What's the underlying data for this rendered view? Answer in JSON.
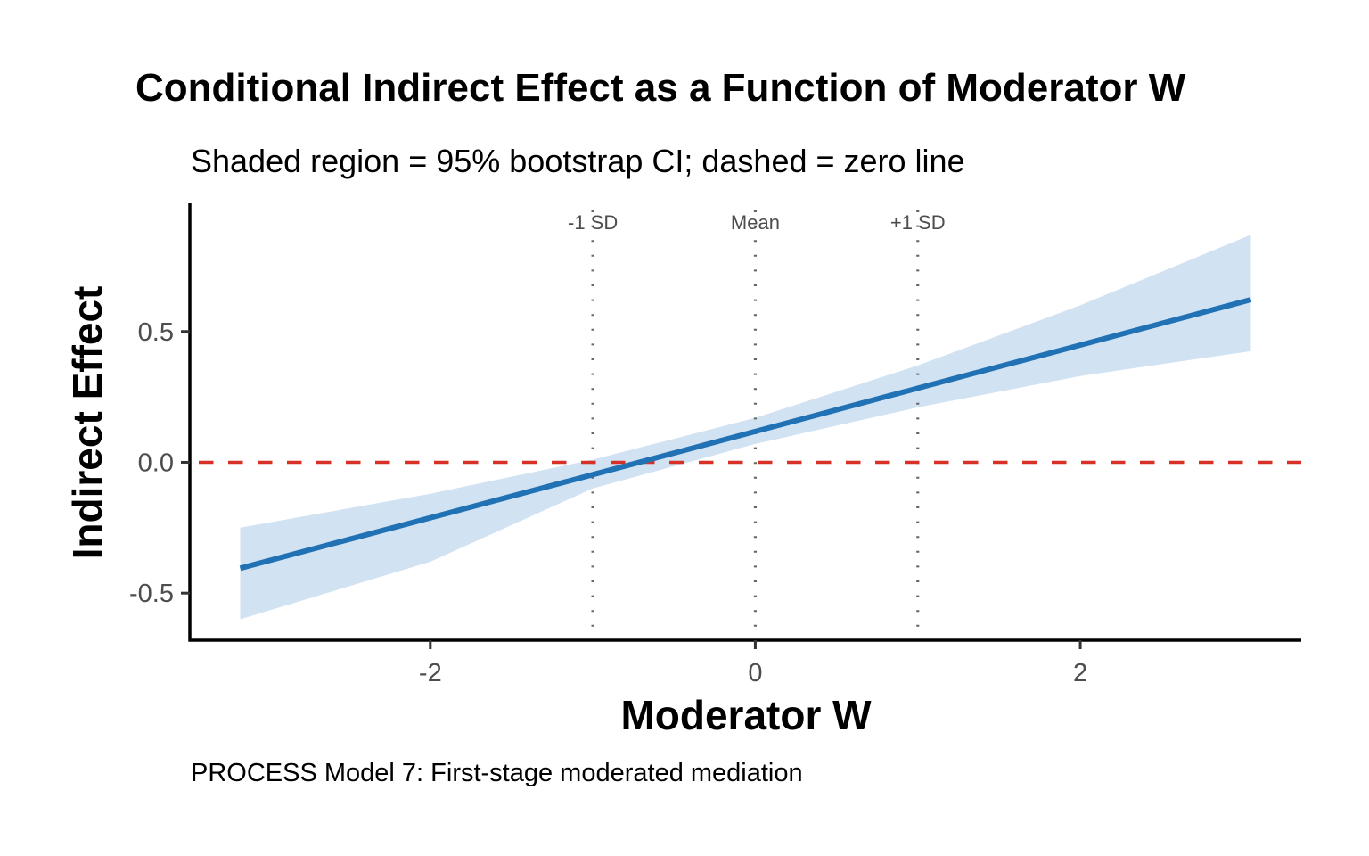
{
  "chart_data": {
    "type": "line",
    "title": "Conditional Indirect Effect as a Function of Moderator W",
    "subtitle": "Shaded region = 95% bootstrap CI; dashed = zero line",
    "caption": "PROCESS Model 7: First-stage moderated mediation",
    "xlabel": "Moderator W",
    "ylabel": "Indirect Effect",
    "xlim": [
      -3.48,
      3.36
    ],
    "ylim": [
      -0.68,
      0.99
    ],
    "x_ticks": [
      -2,
      0,
      2
    ],
    "x_tick_labels": [
      "-2",
      "0",
      "2"
    ],
    "y_ticks": [
      -0.5,
      0.0,
      0.5
    ],
    "y_tick_labels": [
      "-0.5",
      "0.0",
      "0.5"
    ],
    "grid": false,
    "series": [
      {
        "name": "Indirect effect",
        "color": "#2171b5",
        "x": [
          -3.17,
          -2,
          -1,
          0,
          1,
          2,
          3.05
        ],
        "y": [
          -0.405,
          -0.212,
          -0.047,
          0.118,
          0.283,
          0.448,
          0.622
        ]
      }
    ],
    "ci_band": {
      "name": "95% bootstrap CI",
      "color": "#c6dbef",
      "x": [
        -3.17,
        -2,
        -1,
        0,
        1,
        2,
        3.05
      ],
      "lower": [
        -0.6,
        -0.38,
        -0.1,
        0.07,
        0.21,
        0.33,
        0.425
      ],
      "upper": [
        -0.25,
        -0.12,
        0.01,
        0.17,
        0.37,
        0.6,
        0.87
      ]
    },
    "reference_lines": {
      "horizontal": {
        "y": 0,
        "style": "dashed",
        "color": "#d73027",
        "label": "zero line"
      },
      "vertical": [
        {
          "x": -1,
          "label": "-1 SD",
          "style": "dotted",
          "color": "#666666"
        },
        {
          "x": 0,
          "label": "Mean",
          "style": "dotted",
          "color": "#666666"
        },
        {
          "x": 1,
          "label": "+1 SD",
          "style": "dotted",
          "color": "#666666"
        }
      ]
    }
  }
}
